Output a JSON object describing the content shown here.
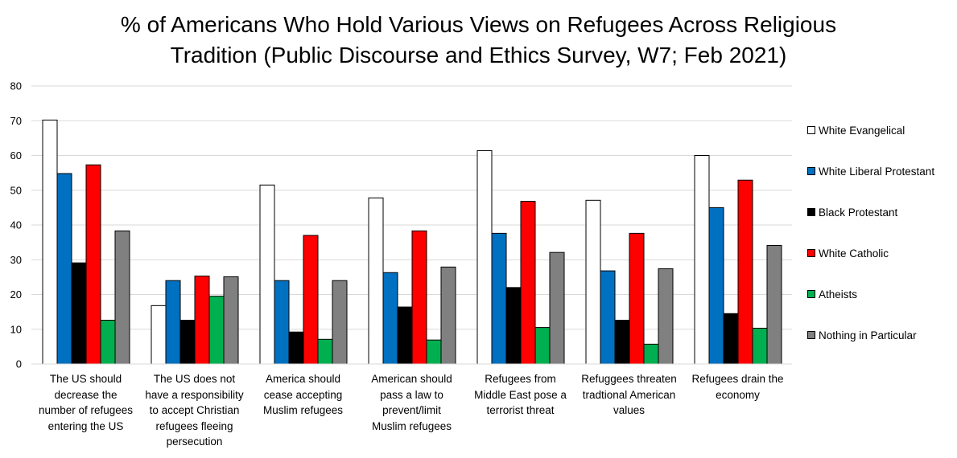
{
  "chart_data": {
    "type": "bar",
    "title_lines": [
      "% of Americans Who Hold Various Views on Refugees Across Religious",
      "Tradition (Public Discourse and Ethics Survey, W7; Feb 2021)"
    ],
    "categories": [
      "The US should decrease the number of refugees entering the US",
      "The US does not have a responsibility to accept Christian refugees fleeing persecution",
      "America should cease accepting Muslim refugees",
      "American should pass a law to prevent/limit Muslim refugees",
      "Refugees from Middle East pose a terrorist threat",
      "Refuggees threaten tradtional American values",
      "Refugees drain the economy"
    ],
    "category_label_lines": [
      [
        "The US should",
        "decrease the",
        "number of refugees",
        "entering the US"
      ],
      [
        "The US does not",
        "have a responsibility",
        "to accept Christian",
        "refugees fleeing",
        "persecution"
      ],
      [
        "America should",
        "cease accepting",
        "Muslim refugees"
      ],
      [
        "American should",
        "pass a law to",
        "prevent/limit",
        "Muslim refugees"
      ],
      [
        "Refugees from",
        "Middle East pose a",
        "terrorist threat"
      ],
      [
        "Refuggees threaten",
        "tradtional American",
        "values"
      ],
      [
        "Refugees drain the",
        "economy"
      ]
    ],
    "series": [
      {
        "name": "White Evangelical",
        "color": "#ffffff",
        "values": [
          70.2,
          16.8,
          51.5,
          47.8,
          61.4,
          47.1,
          60.0
        ]
      },
      {
        "name": "White Liberal Protestant",
        "color": "#0070c0",
        "values": [
          54.8,
          24.0,
          24.0,
          26.3,
          37.6,
          26.8,
          45.0
        ]
      },
      {
        "name": "Black Protestant",
        "color": "#000000",
        "values": [
          29.1,
          12.6,
          9.2,
          16.4,
          22.0,
          12.6,
          14.5
        ]
      },
      {
        "name": "White Catholic",
        "color": "#ff0000",
        "values": [
          57.3,
          25.3,
          37.0,
          38.3,
          46.8,
          37.6,
          52.9
        ]
      },
      {
        "name": "Atheists",
        "color": "#00b050",
        "values": [
          12.6,
          19.5,
          7.1,
          6.9,
          10.5,
          5.7,
          10.3
        ]
      },
      {
        "name": "Nothing in Particular",
        "color": "#808080",
        "values": [
          38.3,
          25.1,
          24.0,
          27.9,
          32.1,
          27.4,
          34.1
        ]
      }
    ],
    "ylim": [
      0,
      80
    ],
    "yticks": [
      0,
      10,
      20,
      30,
      40,
      50,
      60,
      70,
      80
    ],
    "xlabel": "",
    "ylabel": "",
    "grid": true,
    "legend_position": "right"
  }
}
